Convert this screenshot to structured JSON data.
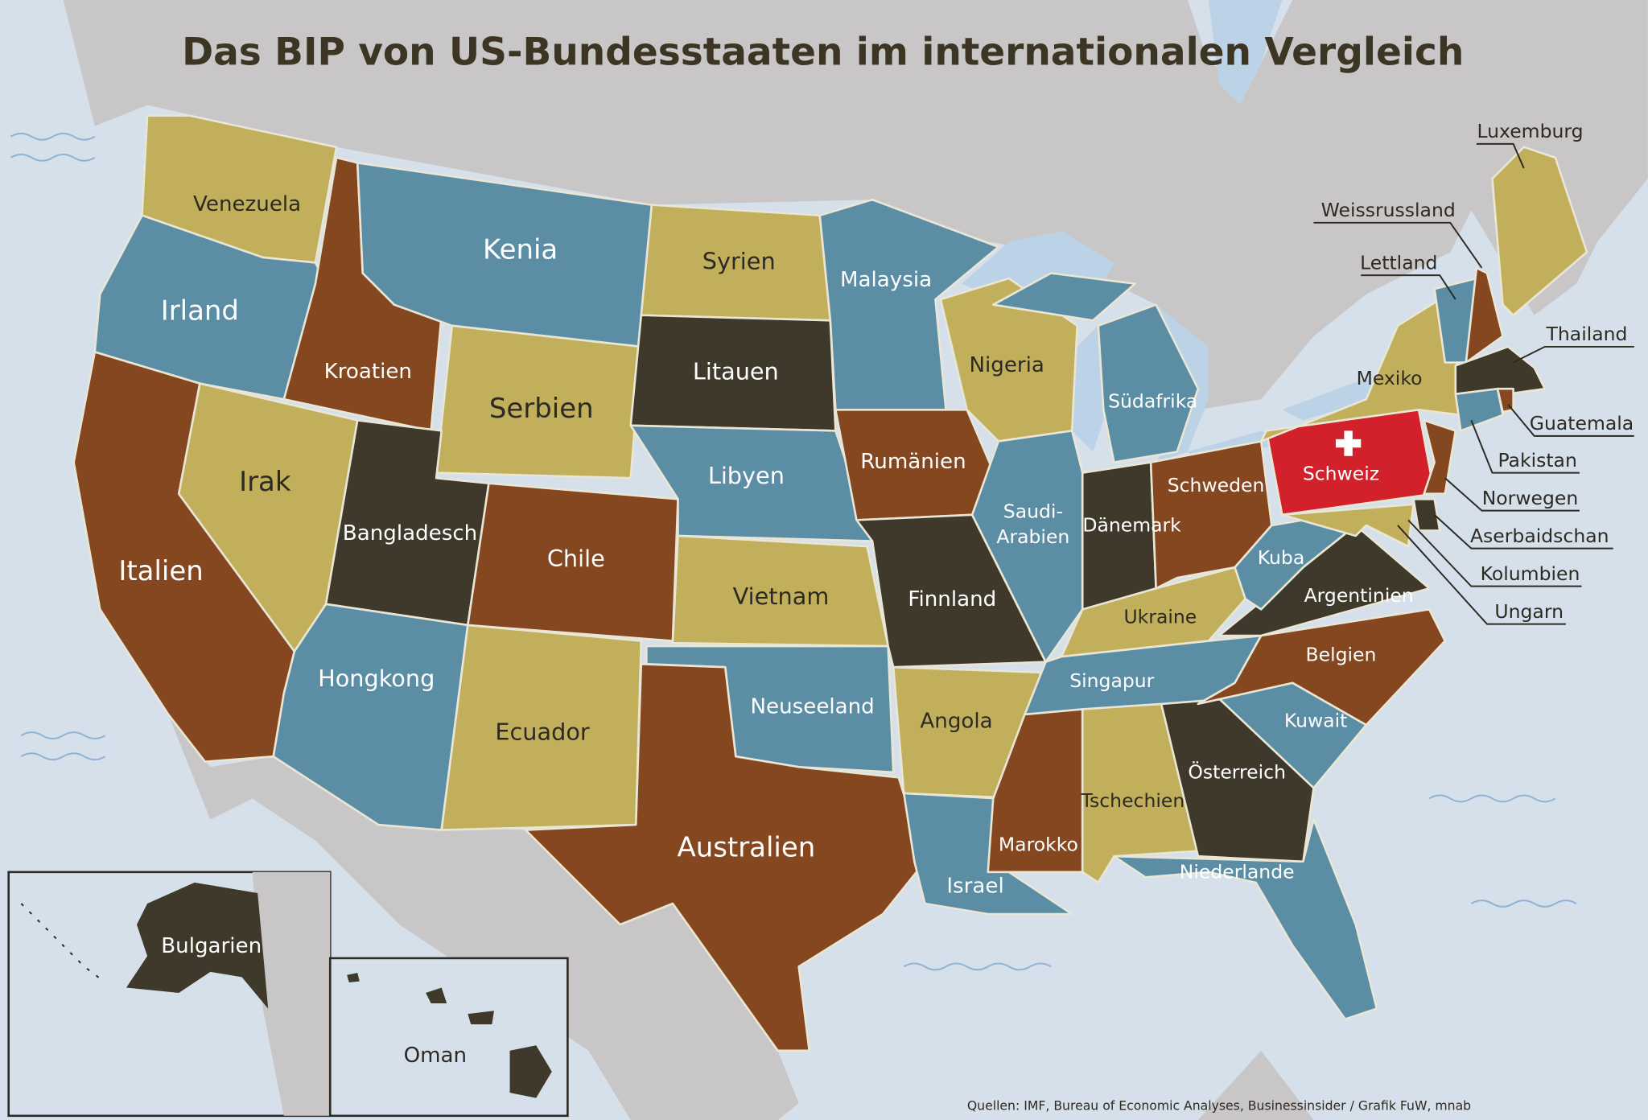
{
  "title": "Das BIP von US-Bundesstaaten im internationalen Vergleich",
  "labels": [
    "Venezuela",
    "Irland",
    "Kroatien",
    "Kenia",
    "Serbien",
    "Italien",
    "Irak",
    "Bangladesch",
    "Chile",
    "Hongkong",
    "Ecuador",
    "Syrien",
    "Litauen",
    "Libyen",
    "Vietnam",
    "Neuseeland",
    "Australien",
    "Malaysia",
    "Rumänien",
    "Finnland",
    "Angola",
    "Israel",
    "Nigeria",
    "Saudi-",
    "Arabien",
    "Südafrika",
    "Dänemark",
    "Schweden",
    "Ukraine",
    "Singapur",
    "Marokko",
    "Tschechien",
    "Österreich",
    "Niederlande",
    "Kuwait",
    "Belgien",
    "Argentinien",
    "Kuba",
    "Schweiz",
    "Mexiko",
    "Luxemburg",
    "Weissrussland",
    "Lettland",
    "Thailand",
    "Guatemala",
    "Pakistan",
    "Norwegen",
    "Aserbaidschan",
    "Kolumbien",
    "Ungarn",
    "Bulgarien",
    "Oman"
  ],
  "source": "Quellen: IMF, Bureau of Economic Analyses, Businessinsider / Grafik FuW, mnab"
}
